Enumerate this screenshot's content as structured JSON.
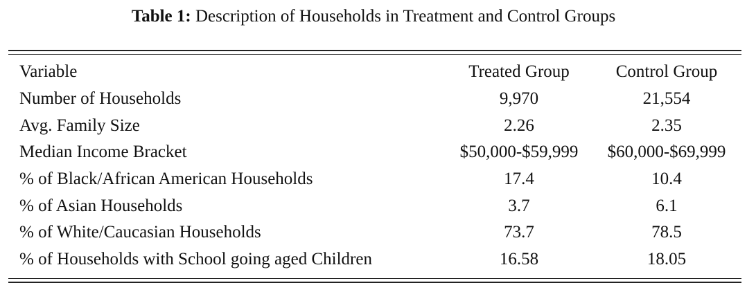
{
  "caption": {
    "label": "Table 1:",
    "text": "Description of Households in Treatment and Control Groups"
  },
  "table": {
    "headers": [
      "Variable",
      "Treated Group",
      "Control Group"
    ],
    "rows": [
      [
        "Number of Households",
        "9,970",
        "21,554"
      ],
      [
        "Avg. Family Size",
        "2.26",
        "2.35"
      ],
      [
        "Median Income Bracket",
        "$50,000-$59,999",
        "$60,000-$69,999"
      ],
      [
        "% of Black/African American Households",
        "17.4",
        "10.4"
      ],
      [
        "% of Asian Households",
        "3.7",
        "6.1"
      ],
      [
        "% of White/Caucasian Households",
        "73.7",
        "78.5"
      ],
      [
        "% of Households with School going aged Children",
        "16.58",
        "18.05"
      ]
    ]
  }
}
